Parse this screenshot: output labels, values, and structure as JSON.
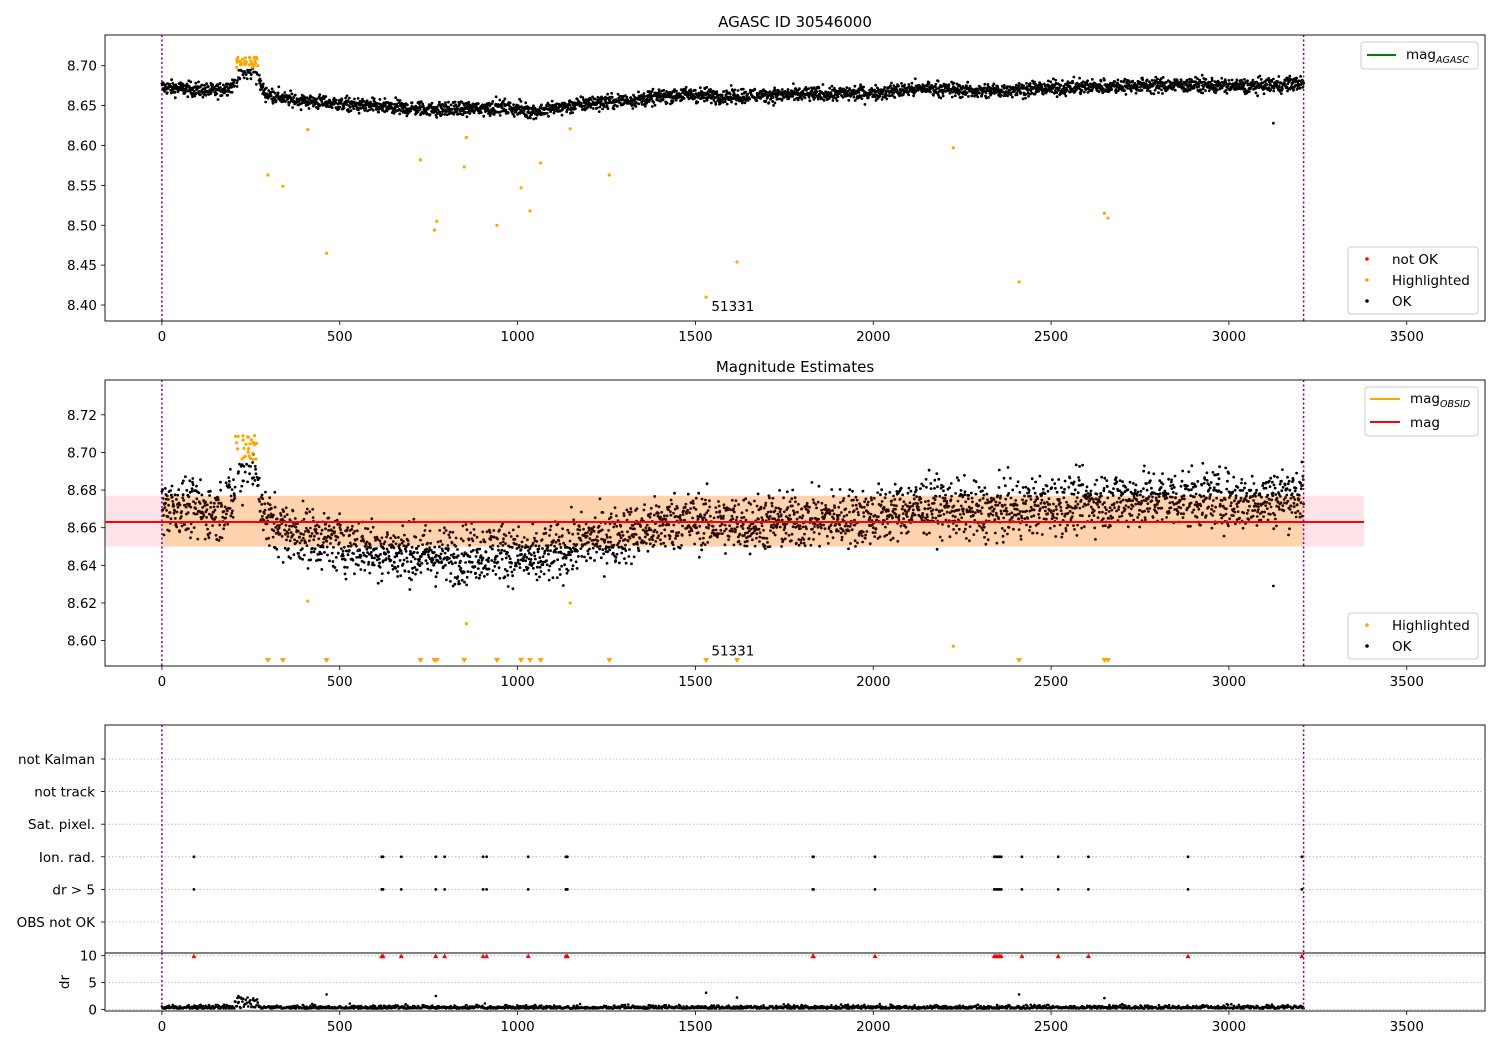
{
  "chart_data": [
    {
      "id": "agasc",
      "type": "scatter",
      "title": "AGASC ID 30546000",
      "xlim": [
        -160,
        3720
      ],
      "ylim": [
        8.38,
        8.7385
      ],
      "xticks": [
        0,
        500,
        1000,
        1500,
        2000,
        2500,
        3000,
        3500
      ],
      "yticks": [
        8.4,
        8.45,
        8.5,
        8.55,
        8.6,
        8.65,
        8.7
      ],
      "vlines": [
        0,
        3210
      ],
      "legend_top": {
        "position": "top-right",
        "entries": [
          {
            "label": "mag_AGASC",
            "color": "#008000"
          }
        ]
      },
      "legend_bottom": {
        "position": "lower-right",
        "entries": [
          {
            "label": "not OK",
            "color": "#ff0000"
          },
          {
            "label": "Highlighted",
            "color": "#ffa500"
          },
          {
            "label": "OK",
            "color": "#000000"
          }
        ]
      },
      "annotation": {
        "text": "51331",
        "x": 1545,
        "y": 8.39
      },
      "ok_trend": [
        [
          0,
          8.673
        ],
        [
          100,
          8.67
        ],
        [
          150,
          8.668
        ],
        [
          200,
          8.675
        ],
        [
          230,
          8.69
        ],
        [
          260,
          8.692
        ],
        [
          290,
          8.665
        ],
        [
          350,
          8.658
        ],
        [
          500,
          8.652
        ],
        [
          650,
          8.647
        ],
        [
          800,
          8.645
        ],
        [
          950,
          8.648
        ],
        [
          1050,
          8.643
        ],
        [
          1200,
          8.653
        ],
        [
          1350,
          8.658
        ],
        [
          1450,
          8.664
        ],
        [
          1600,
          8.662
        ],
        [
          1800,
          8.664
        ],
        [
          2000,
          8.666
        ],
        [
          2150,
          8.672
        ],
        [
          2300,
          8.668
        ],
        [
          2500,
          8.672
        ],
        [
          2700,
          8.675
        ],
        [
          2900,
          8.676
        ],
        [
          3050,
          8.674
        ],
        [
          3210,
          8.678
        ]
      ],
      "ok_outliers": [
        {
          "x": 3125,
          "y": 8.628
        }
      ],
      "highlighted": [
        {
          "x": 298,
          "y": 8.563
        },
        {
          "x": 340,
          "y": 8.549
        },
        {
          "x": 410,
          "y": 8.62
        },
        {
          "x": 463,
          "y": 8.465
        },
        {
          "x": 727,
          "y": 8.582
        },
        {
          "x": 766,
          "y": 8.494
        },
        {
          "x": 773,
          "y": 8.505
        },
        {
          "x": 850,
          "y": 8.573
        },
        {
          "x": 856,
          "y": 8.61
        },
        {
          "x": 942,
          "y": 8.5
        },
        {
          "x": 1010,
          "y": 8.547
        },
        {
          "x": 1035,
          "y": 8.518
        },
        {
          "x": 1065,
          "y": 8.578
        },
        {
          "x": 1148,
          "y": 8.621
        },
        {
          "x": 1258,
          "y": 8.563
        },
        {
          "x": 1530,
          "y": 8.41
        },
        {
          "x": 1617,
          "y": 8.454
        },
        {
          "x": 2225,
          "y": 8.597
        },
        {
          "x": 2410,
          "y": 8.429
        },
        {
          "x": 2650,
          "y": 8.515
        },
        {
          "x": 2660,
          "y": 8.509
        }
      ],
      "highlighted_cluster": {
        "x_range": [
          205,
          270
        ],
        "y_range": [
          8.698,
          8.711
        ]
      }
    },
    {
      "id": "estimates",
      "type": "scatter",
      "title": "Magnitude Estimates",
      "xlim": [
        -160,
        3720
      ],
      "ylim": [
        8.5865,
        8.7385
      ],
      "xticks": [
        0,
        500,
        1000,
        1500,
        2000,
        2500,
        3000,
        3500
      ],
      "yticks": [
        8.6,
        8.62,
        8.64,
        8.66,
        8.68,
        8.7,
        8.72
      ],
      "vlines": [
        0,
        3210
      ],
      "mag_line": {
        "y": 8.663,
        "x_range": [
          -160,
          3380
        ],
        "band": [
          8.65,
          8.677
        ]
      },
      "legend_top": {
        "position": "top-right",
        "entries": [
          {
            "label": "mag_OBSID",
            "color": "#ffa500"
          },
          {
            "label": "mag",
            "color": "#ff0000"
          }
        ]
      },
      "legend_bottom": {
        "position": "lower-right",
        "entries": [
          {
            "label": "Highlighted",
            "color": "#ffa500"
          },
          {
            "label": "OK",
            "color": "#000000"
          }
        ]
      },
      "annotation": {
        "text": "51331",
        "x": 1545,
        "y": 8.591
      },
      "ok_outliers": [
        {
          "x": 3125,
          "y": 8.629
        }
      ],
      "highlighted": [
        {
          "x": 410,
          "y": 8.621
        },
        {
          "x": 856,
          "y": 8.609
        },
        {
          "x": 1148,
          "y": 8.62
        },
        {
          "x": 2225,
          "y": 8.597
        }
      ],
      "clipped_markers_x": [
        298,
        340,
        463,
        727,
        766,
        773,
        850,
        942,
        1010,
        1035,
        1065,
        1258,
        1530,
        1617,
        2410,
        2650,
        2660
      ]
    },
    {
      "id": "flags",
      "type": "scatter",
      "xlim": [
        -160,
        3720
      ],
      "rows": [
        "not Kalman",
        "not track",
        "Sat. pixel.",
        "Ion. rad.",
        "dr > 5",
        "OBS not OK"
      ],
      "vlines": [
        0,
        3210
      ],
      "flag_x": [
        90,
        618,
        622,
        673,
        770,
        795,
        903,
        913,
        1030,
        1136,
        1140,
        1830,
        1832,
        2005,
        2340,
        2345,
        2350,
        2355,
        2360,
        2418,
        2520,
        2605,
        2885,
        3205
      ],
      "flagged_rows": [
        "Ion. rad.",
        "dr > 5"
      ]
    },
    {
      "id": "dr",
      "type": "scatter",
      "ylabel": "dr",
      "xlim": [
        -160,
        3720
      ],
      "ylim": [
        -0.3,
        10.5
      ],
      "xticks": [
        0,
        500,
        1000,
        1500,
        2000,
        2500,
        3000,
        3500
      ],
      "yticks": [
        0,
        5,
        10
      ],
      "vlines": [
        0,
        3210
      ],
      "capped_at": 10,
      "capped_x": [
        90,
        618,
        622,
        673,
        770,
        795,
        903,
        913,
        1030,
        1136,
        1140,
        1830,
        1832,
        2005,
        2340,
        2345,
        2350,
        2355,
        2360,
        2418,
        2520,
        2605,
        2885,
        3205
      ],
      "spikes": [
        {
          "x": 215,
          "y": 2.5
        },
        {
          "x": 222,
          "y": 2.2
        },
        {
          "x": 260,
          "y": 1.6
        },
        {
          "x": 463,
          "y": 2.8
        },
        {
          "x": 770,
          "y": 2.5
        },
        {
          "x": 1530,
          "y": 3.1
        },
        {
          "x": 1617,
          "y": 2.2
        },
        {
          "x": 2410,
          "y": 2.8
        },
        {
          "x": 2650,
          "y": 2.1
        }
      ]
    }
  ]
}
